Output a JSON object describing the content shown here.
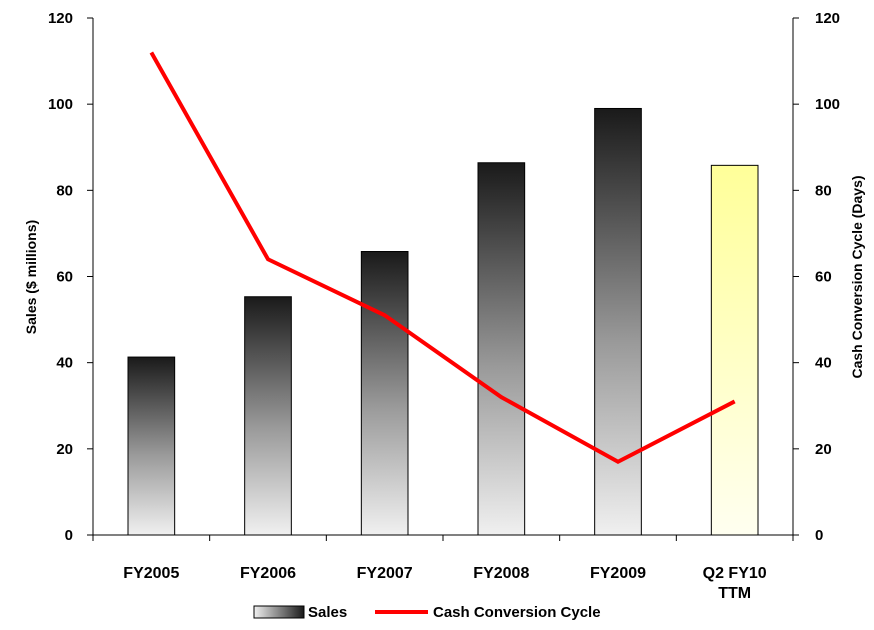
{
  "chart_data": {
    "type": "bar",
    "categories": [
      "FY2005",
      "FY2006",
      "FY2007",
      "FY2008",
      "FY2009",
      "Q2 FY10\nTTM"
    ],
    "series": [
      {
        "name": "Sales",
        "kind": "bar",
        "axis": "left",
        "values": [
          41.3,
          55.3,
          65.8,
          86.4,
          99.0,
          85.8
        ],
        "highlight_last": true
      },
      {
        "name": "Cash Conversion Cycle",
        "kind": "line",
        "axis": "right",
        "color": "#ff0000",
        "values": [
          112,
          64,
          51,
          32,
          17,
          31
        ]
      }
    ],
    "ylabel": "Sales ($ millions)",
    "y2label": "Cash Conversion Cycle (Days)",
    "ylim": [
      0,
      120
    ],
    "y2lim": [
      0,
      120
    ],
    "yticks": [
      0,
      20,
      40,
      60,
      80,
      100,
      120
    ],
    "y2ticks": [
      0,
      20,
      40,
      60,
      80,
      100,
      120
    ],
    "grid": false,
    "legend_position": "bottom-center",
    "colors": {
      "bar_top": "#1a1a1a",
      "bar_bottom": "#f0f0f0",
      "highlight_top": "#ffff99",
      "highlight_bottom": "#fffff0",
      "line": "#ff0000"
    }
  }
}
